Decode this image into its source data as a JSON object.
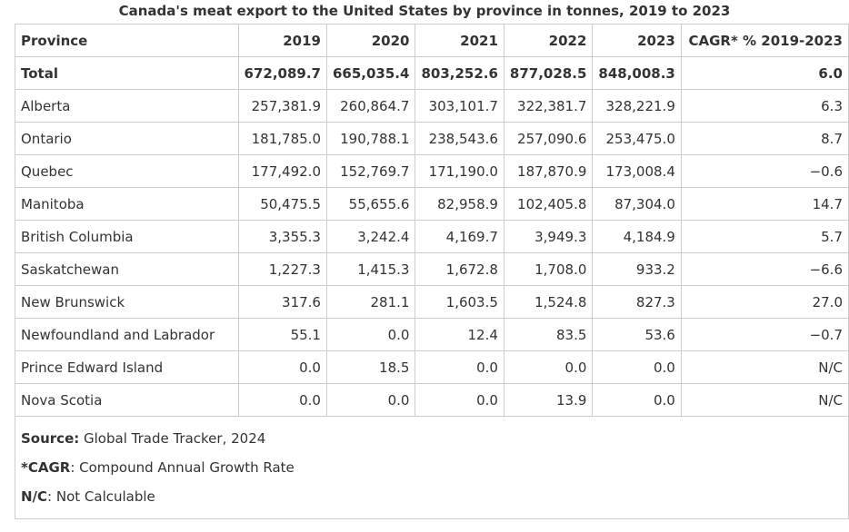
{
  "caption": "Canada's meat export to the United States by province in tonnes, 2019 to 2023",
  "headers": [
    "Province",
    "2019",
    "2020",
    "2021",
    "2022",
    "2023",
    "CAGR* % 2019-2023"
  ],
  "rows": [
    {
      "province": "Total",
      "values": [
        "672,089.7",
        "665,035.4",
        "803,252.6",
        "877,028.5",
        "848,008.3"
      ],
      "cagr": "6.0"
    },
    {
      "province": "Alberta",
      "values": [
        "257,381.9",
        "260,864.7",
        "303,101.7",
        "322,381.7",
        "328,221.9"
      ],
      "cagr": "6.3"
    },
    {
      "province": "Ontario",
      "values": [
        "181,785.0",
        "190,788.1",
        "238,543.6",
        "257,090.6",
        "253,475.0"
      ],
      "cagr": "8.7"
    },
    {
      "province": "Quebec",
      "values": [
        "177,492.0",
        "152,769.7",
        "171,190.0",
        "187,870.9",
        "173,008.4"
      ],
      "cagr": "−0.6"
    },
    {
      "province": "Manitoba",
      "values": [
        "50,475.5",
        "55,655.6",
        "82,958.9",
        "102,405.8",
        "87,304.0"
      ],
      "cagr": "14.7"
    },
    {
      "province": "British Columbia",
      "values": [
        "3,355.3",
        "3,242.4",
        "4,169.7",
        "3,949.3",
        "4,184.9"
      ],
      "cagr": "5.7"
    },
    {
      "province": "Saskatchewan",
      "values": [
        "1,227.3",
        "1,415.3",
        "1,672.8",
        "1,708.0",
        "933.2"
      ],
      "cagr": "−6.6"
    },
    {
      "province": "New Brunswick",
      "values": [
        "317.6",
        "281.1",
        "1,603.5",
        "1,524.8",
        "827.3"
      ],
      "cagr": "27.0"
    },
    {
      "province": "Newfoundland and Labrador",
      "values": [
        "55.1",
        "0.0",
        "12.4",
        "83.5",
        "53.6"
      ],
      "cagr": "−0.7"
    },
    {
      "province": "Prince Edward Island",
      "values": [
        "0.0",
        "18.5",
        "0.0",
        "0.0",
        "0.0"
      ],
      "cagr": "N/C"
    },
    {
      "province": "Nova Scotia",
      "values": [
        "0.0",
        "0.0",
        "0.0",
        "13.9",
        "0.0"
      ],
      "cagr": "N/C"
    }
  ],
  "notes": [
    {
      "label": "Source:",
      "text": " Global Trade Tracker, 2024"
    },
    {
      "label": "*CAGR",
      "text": ": Compound Annual Growth Rate"
    },
    {
      "label": "N/C",
      "text": ": Not Calculable"
    }
  ]
}
